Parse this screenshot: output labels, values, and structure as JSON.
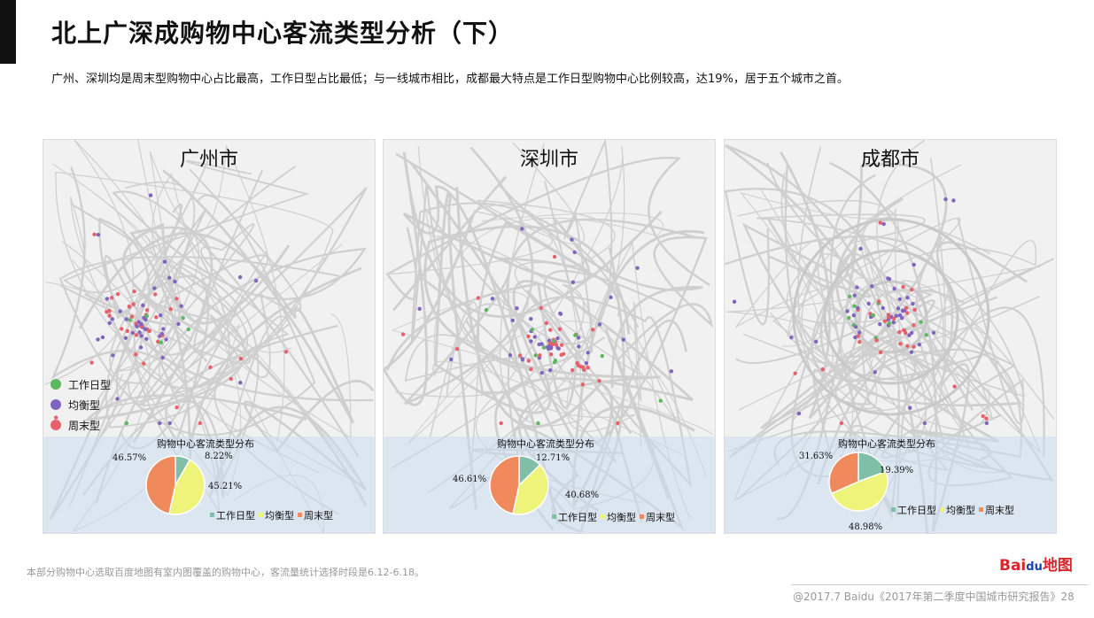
{
  "title": "北上广深成购物中心客流类型分析（下）",
  "subtitle": "广州、深圳均是周末型购物中心占比最高，工作日型占比最低；与一线城市相比，成都最大特点是工作日型购物中心比例较高，达19%，居于五个城市之首。",
  "map_legend": [
    {
      "label": "工作日型",
      "color": "#5cb85c"
    },
    {
      "label": "均衡型",
      "color": "#8064c0"
    },
    {
      "label": "周末型",
      "color": "#e8606a"
    }
  ],
  "chart_data": [
    {
      "type": "pie",
      "city": "广州市",
      "title": "购物中心客流类型分布",
      "categories": [
        "工作日型",
        "均衡型",
        "周末型"
      ],
      "values": [
        8.22,
        45.21,
        46.57
      ],
      "labels": [
        "8.22%",
        "45.21%",
        "46.57%"
      ],
      "colors": [
        "#7fbfa6",
        "#eef47a",
        "#f08a5c"
      ],
      "legend": "bottom-right"
    },
    {
      "type": "pie",
      "city": "深圳市",
      "title": "购物中心客流类型分布",
      "categories": [
        "工作日型",
        "均衡型",
        "周末型"
      ],
      "values": [
        12.71,
        40.68,
        46.61
      ],
      "labels": [
        "12.71%",
        "40.68%",
        "46.61%"
      ],
      "colors": [
        "#7fbfa6",
        "#eef47a",
        "#f08a5c"
      ],
      "legend": "bottom-right"
    },
    {
      "type": "pie",
      "city": "成都市",
      "title": "购物中心客流类型分布",
      "categories": [
        "工作日型",
        "均衡型",
        "周末型"
      ],
      "values": [
        19.39,
        48.98,
        31.63
      ],
      "labels": [
        "19.39%",
        "48.98%",
        "31.63%"
      ],
      "colors": [
        "#7fbfa6",
        "#eef47a",
        "#f08a5c"
      ],
      "legend": "bottom-right"
    }
  ],
  "note": "本部分购物中心选取百度地图有室内图覆盖的购物中心，客流量统计选择时段是6.12-6.18。",
  "logo": "Bai du 地图",
  "logo_parts": {
    "a": "Bai",
    "b": "du",
    "c": "地图"
  },
  "footer": "@2017.7 Baidu《2017年第二季度中国城市研究报告》28"
}
